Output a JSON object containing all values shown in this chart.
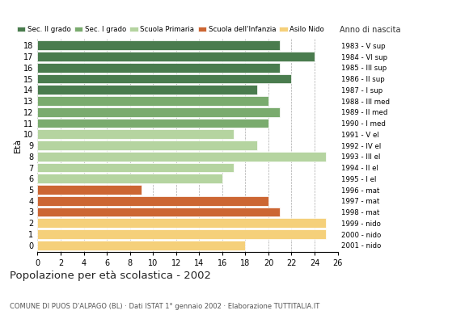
{
  "ages": [
    18,
    17,
    16,
    15,
    14,
    13,
    12,
    11,
    10,
    9,
    8,
    7,
    6,
    5,
    4,
    3,
    2,
    1,
    0
  ],
  "values": [
    21,
    24,
    21,
    22,
    19,
    20,
    21,
    20,
    17,
    19,
    25,
    17,
    16,
    9,
    20,
    21,
    25,
    25,
    18
  ],
  "right_labels": [
    "1983 - V sup",
    "1984 - VI sup",
    "1985 - III sup",
    "1986 - II sup",
    "1987 - I sup",
    "1988 - III med",
    "1989 - II med",
    "1990 - I med",
    "1991 - V el",
    "1992 - IV el",
    "1993 - III el",
    "1994 - II el",
    "1995 - I el",
    "1996 - mat",
    "1997 - mat",
    "1998 - mat",
    "1999 - nido",
    "2000 - nido",
    "2001 - nido"
  ],
  "bar_colors": [
    "#4a7c4e",
    "#4a7c4e",
    "#4a7c4e",
    "#4a7c4e",
    "#4a7c4e",
    "#7aab6e",
    "#7aab6e",
    "#7aab6e",
    "#b5d4a0",
    "#b5d4a0",
    "#b5d4a0",
    "#b5d4a0",
    "#b5d4a0",
    "#cc6633",
    "#cc6633",
    "#cc6633",
    "#f5d07a",
    "#f5d07a",
    "#f5d07a"
  ],
  "ylabel": "Età",
  "title": "Popolazione per età scolastica - 2002",
  "subtitle": "COMUNE DI PUOS D'ALPAGO (BL) · Dati ISTAT 1° gennaio 2002 · Elaborazione TUTTITALIA.IT",
  "xlim": [
    0,
    26
  ],
  "xticks": [
    0,
    2,
    4,
    6,
    8,
    10,
    12,
    14,
    16,
    18,
    20,
    22,
    24,
    26
  ],
  "legend_labels": [
    "Sec. II grado",
    "Sec. I grado",
    "Scuola Primaria",
    "Scuola dell'Infanzia",
    "Asilo Nido"
  ],
  "legend_colors": [
    "#4a7c4e",
    "#7aab6e",
    "#b5d4a0",
    "#cc6633",
    "#f5d07a"
  ],
  "right_label_header": "Anno di nascita",
  "background_color": "#ffffff",
  "grid_color": "#aaaaaa"
}
